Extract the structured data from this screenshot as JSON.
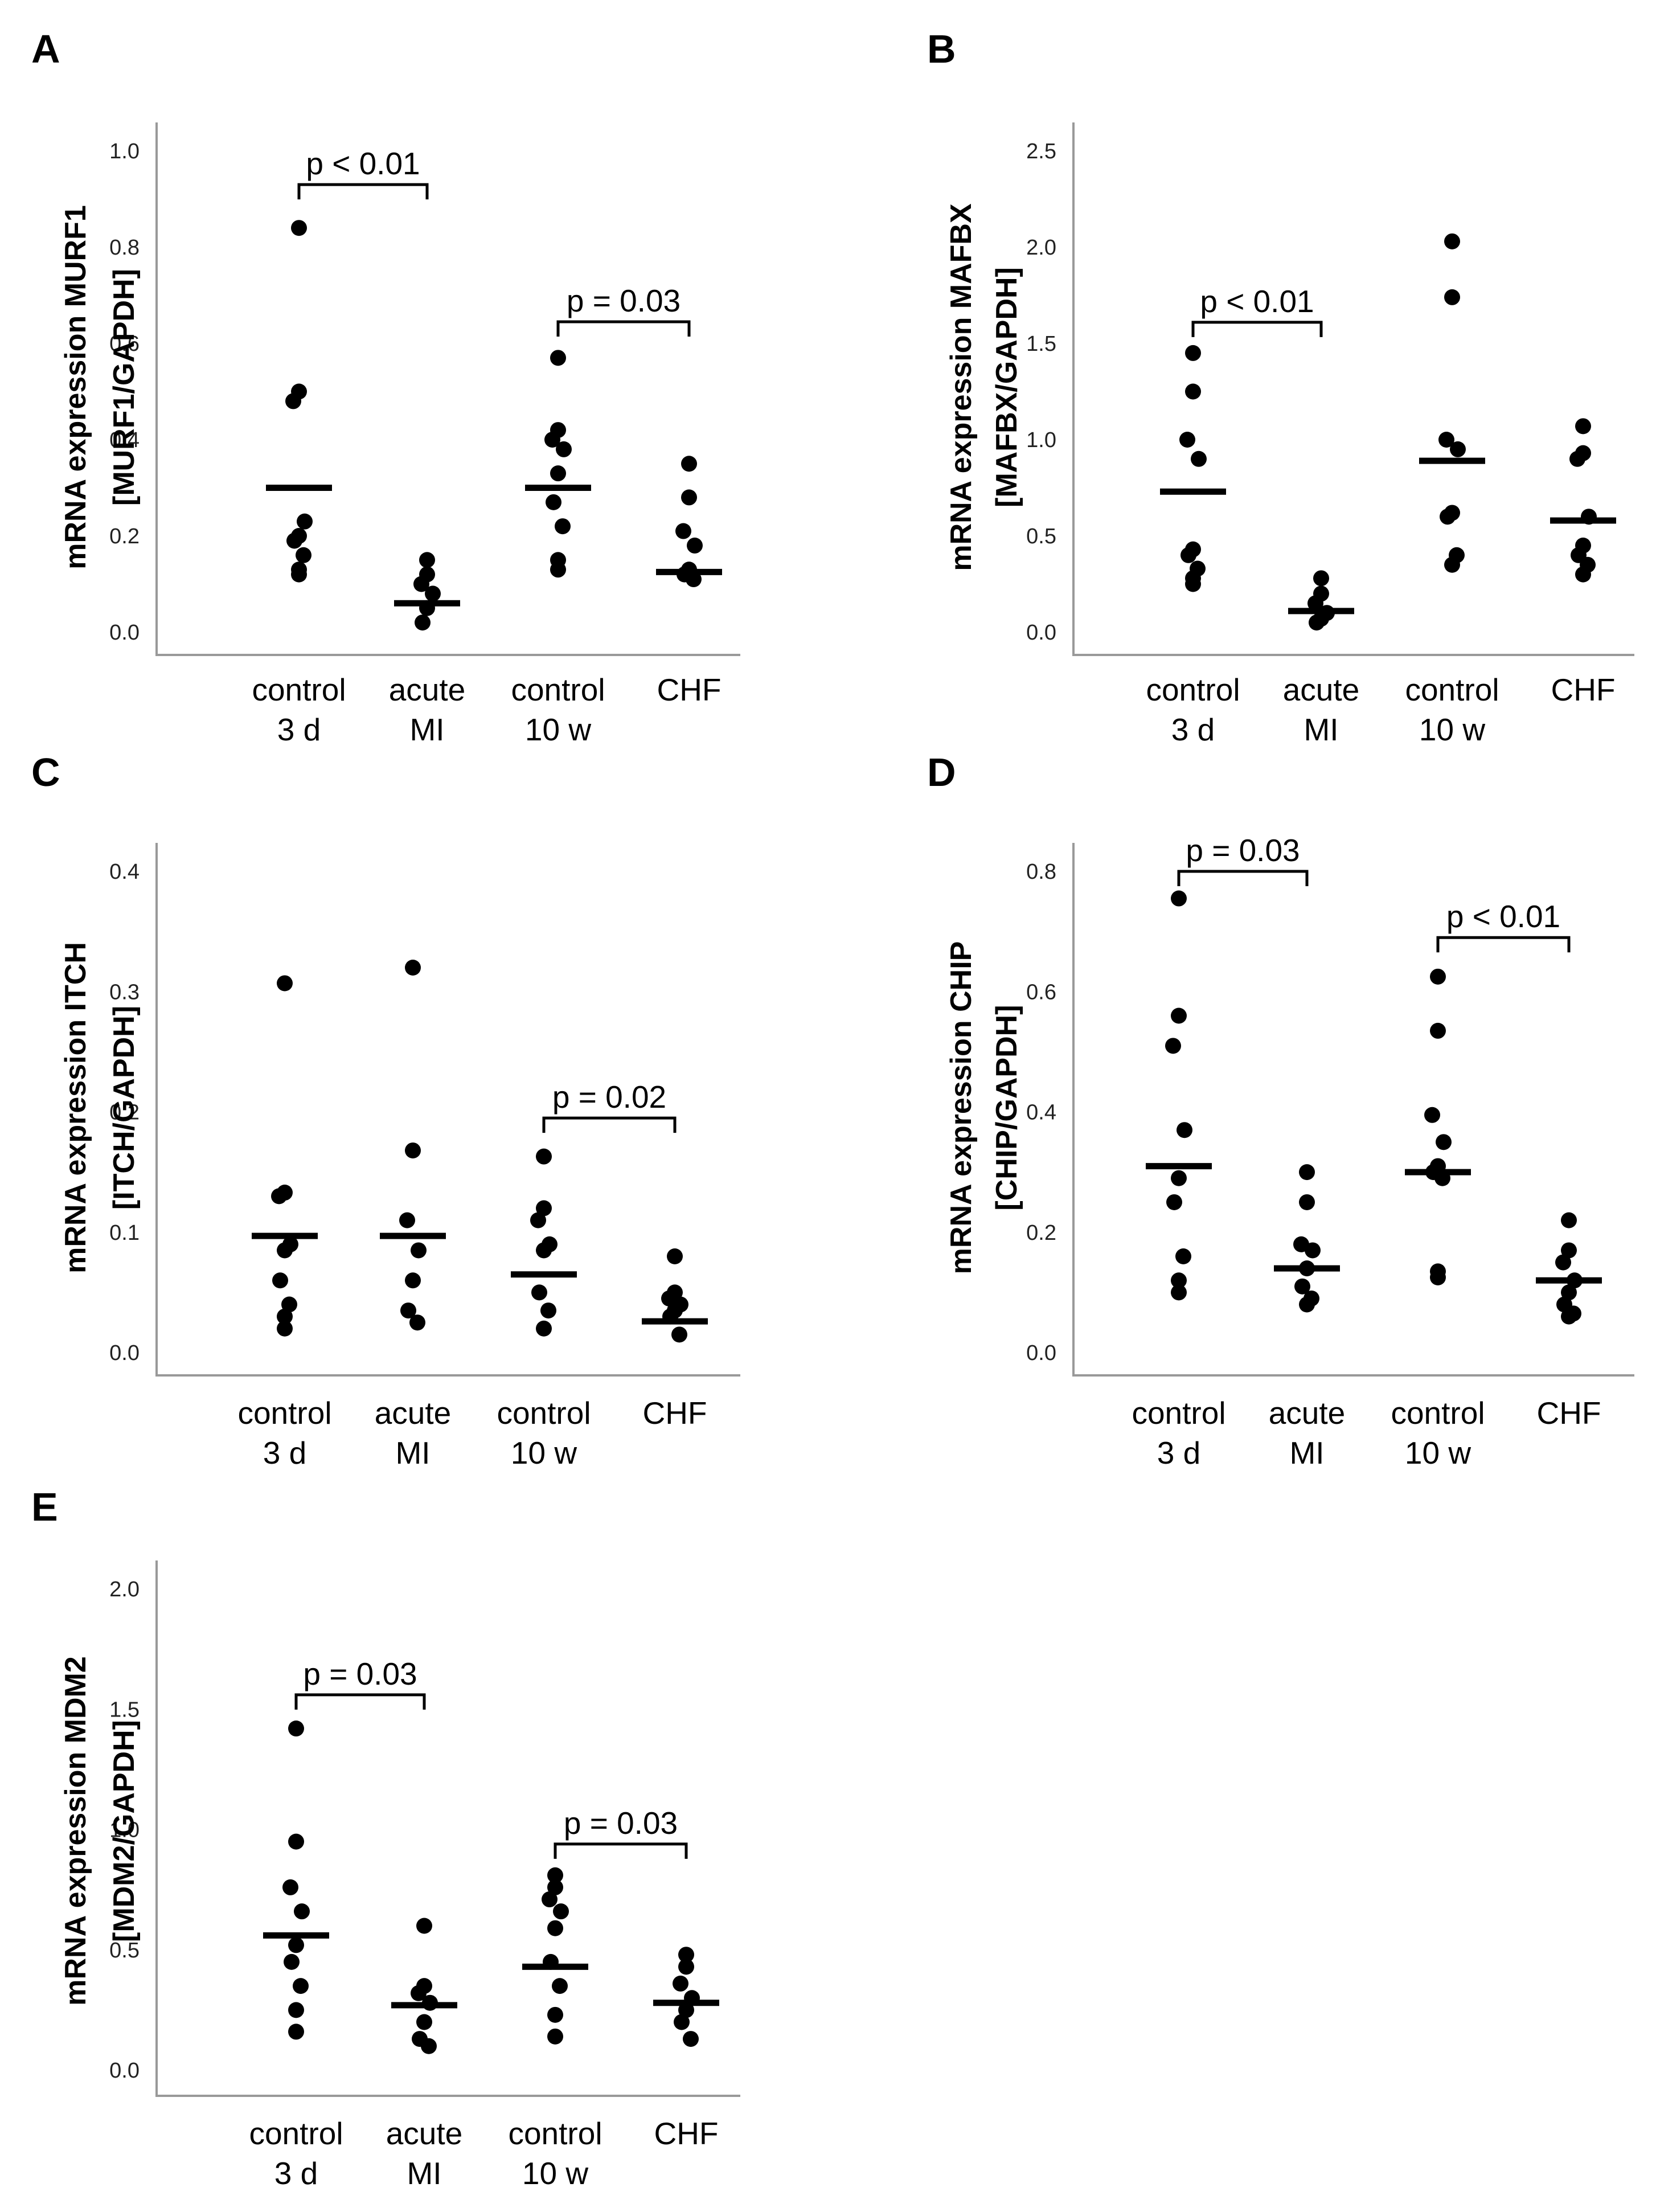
{
  "chart_data": [
    {
      "type": "scatter",
      "panel": "A",
      "ylabel": [
        "mRNA expression MURF1",
        "[MURF1/GAPDH]"
      ],
      "ylim": [
        0,
        1.0
      ],
      "yticks": [
        0.0,
        0.2,
        0.4,
        0.6,
        0.8,
        1.0
      ],
      "ytick_labels": [
        "0.0",
        "0.2",
        "0.4",
        "0.6",
        "0.8",
        "1.0"
      ],
      "categories": [
        [
          "control",
          "3 d"
        ],
        [
          "acute",
          "MI"
        ],
        [
          "control",
          "10 w"
        ],
        [
          "CHF"
        ]
      ],
      "points": [
        [
          0.84,
          0.5,
          0.48,
          0.23,
          0.2,
          0.19,
          0.16,
          0.13,
          0.12
        ],
        [
          0.15,
          0.12,
          0.1,
          0.08,
          0.05,
          0.02
        ],
        [
          0.57,
          0.42,
          0.4,
          0.38,
          0.33,
          0.27,
          0.22,
          0.15,
          0.13
        ],
        [
          0.35,
          0.28,
          0.21,
          0.18,
          0.13,
          0.12,
          0.11
        ]
      ],
      "medians": [
        0.3,
        0.06,
        0.3,
        0.125
      ],
      "comparisons": [
        {
          "from": 0,
          "to": 1,
          "label": "p < 0.01",
          "y": 0.93
        },
        {
          "from": 2,
          "to": 3,
          "label": "p = 0.03",
          "y": 0.645
        }
      ]
    },
    {
      "type": "scatter",
      "panel": "B",
      "ylabel": [
        "mRNA expression MAFBX",
        "[MAFBX/GAPDH]"
      ],
      "ylim": [
        0,
        2.5
      ],
      "yticks": [
        0.0,
        0.5,
        1.0,
        1.5,
        2.0,
        2.5
      ],
      "ytick_labels": [
        "0.0",
        "0.5",
        "1.0",
        "1.5",
        "2.0",
        "2.5"
      ],
      "categories": [
        [
          "control",
          "3 d"
        ],
        [
          "acute",
          "MI"
        ],
        [
          "control",
          "10 w"
        ],
        [
          "CHF"
        ]
      ],
      "points": [
        [
          1.45,
          1.25,
          1.0,
          0.9,
          0.43,
          0.4,
          0.33,
          0.28,
          0.25
        ],
        [
          0.28,
          0.2,
          0.15,
          0.1,
          0.07,
          0.05
        ],
        [
          2.03,
          1.74,
          1.0,
          0.95,
          0.62,
          0.6,
          0.4,
          0.35
        ],
        [
          1.07,
          0.93,
          0.9,
          0.6,
          0.45,
          0.4,
          0.35,
          0.3
        ]
      ],
      "medians": [
        0.73,
        0.11,
        0.89,
        0.58
      ],
      "comparisons": [
        {
          "from": 0,
          "to": 1,
          "label": "p < 0.01",
          "y": 1.61
        }
      ]
    },
    {
      "type": "scatter",
      "panel": "C",
      "ylabel": [
        "mRNA expression ITCH",
        "[ITCH/GAPDH]"
      ],
      "ylim": [
        0,
        0.4
      ],
      "yticks": [
        0.0,
        0.1,
        0.2,
        0.3,
        0.4
      ],
      "ytick_labels": [
        "0.0",
        "0.1",
        "0.2",
        "0.3",
        "0.4"
      ],
      "categories": [
        [
          "control",
          "3 d"
        ],
        [
          "acute",
          "MI"
        ],
        [
          "control",
          "10 w"
        ],
        [
          "CHF"
        ]
      ],
      "points": [
        [
          0.307,
          0.133,
          0.13,
          0.09,
          0.085,
          0.06,
          0.04,
          0.03,
          0.02
        ],
        [
          0.32,
          0.168,
          0.11,
          0.085,
          0.06,
          0.035,
          0.025
        ],
        [
          0.163,
          0.12,
          0.11,
          0.09,
          0.085,
          0.05,
          0.035,
          0.02
        ],
        [
          0.08,
          0.05,
          0.045,
          0.04,
          0.035,
          0.03,
          0.015
        ]
      ],
      "medians": [
        0.097,
        0.097,
        0.065,
        0.026
      ],
      "comparisons": [
        {
          "from": 2,
          "to": 3,
          "label": "p = 0.02",
          "y": 0.195
        }
      ]
    },
    {
      "type": "scatter",
      "panel": "D",
      "ylabel": [
        "mRNA expression CHIP",
        "[CHIP/GAPDH]"
      ],
      "ylim": [
        0,
        0.8
      ],
      "yticks": [
        0.0,
        0.2,
        0.4,
        0.6,
        0.8
      ],
      "ytick_labels": [
        "0.0",
        "0.2",
        "0.4",
        "0.6",
        "0.8"
      ],
      "categories": [
        [
          "control",
          "3 d"
        ],
        [
          "acute",
          "MI"
        ],
        [
          "control",
          "10 w"
        ],
        [
          "CHF"
        ]
      ],
      "points": [
        [
          0.755,
          0.56,
          0.51,
          0.37,
          0.29,
          0.25,
          0.16,
          0.12,
          0.1
        ],
        [
          0.3,
          0.25,
          0.18,
          0.17,
          0.14,
          0.11,
          0.09,
          0.08
        ],
        [
          0.625,
          0.535,
          0.395,
          0.35,
          0.31,
          0.3,
          0.29,
          0.135,
          0.125
        ],
        [
          0.22,
          0.17,
          0.15,
          0.12,
          0.1,
          0.08,
          0.065,
          0.06
        ]
      ],
      "medians": [
        0.31,
        0.14,
        0.3,
        0.12
      ],
      "comparisons": [
        {
          "from": 0,
          "to": 1,
          "label": "p = 0.03",
          "y": 0.8
        },
        {
          "from": 2,
          "to": 3,
          "label": "p < 0.01",
          "y": 0.69
        }
      ]
    },
    {
      "type": "scatter",
      "panel": "E",
      "ylabel": [
        "mRNA expression MDM2",
        "[MDM2/GAPDH]"
      ],
      "ylim": [
        0,
        2.0
      ],
      "yticks": [
        0.0,
        0.5,
        1.0,
        1.5,
        2.0
      ],
      "ytick_labels": [
        "0.0",
        "0.5",
        "1.0",
        "1.5",
        "2.0"
      ],
      "categories": [
        [
          "control",
          "3 d"
        ],
        [
          "acute",
          "MI"
        ],
        [
          "control",
          "10 w"
        ],
        [
          "CHF"
        ]
      ],
      "points": [
        [
          1.42,
          0.95,
          0.76,
          0.66,
          0.52,
          0.45,
          0.35,
          0.25,
          0.16
        ],
        [
          0.6,
          0.35,
          0.32,
          0.28,
          0.2,
          0.13,
          0.1
        ],
        [
          0.81,
          0.76,
          0.71,
          0.66,
          0.59,
          0.45,
          0.35,
          0.23,
          0.14
        ],
        [
          0.48,
          0.43,
          0.36,
          0.3,
          0.25,
          0.2,
          0.13
        ]
      ],
      "medians": [
        0.56,
        0.27,
        0.43,
        0.28
      ],
      "comparisons": [
        {
          "from": 0,
          "to": 1,
          "label": "p = 0.03",
          "y": 1.56
        },
        {
          "from": 2,
          "to": 3,
          "label": "p = 0.03",
          "y": 0.94
        }
      ]
    }
  ]
}
